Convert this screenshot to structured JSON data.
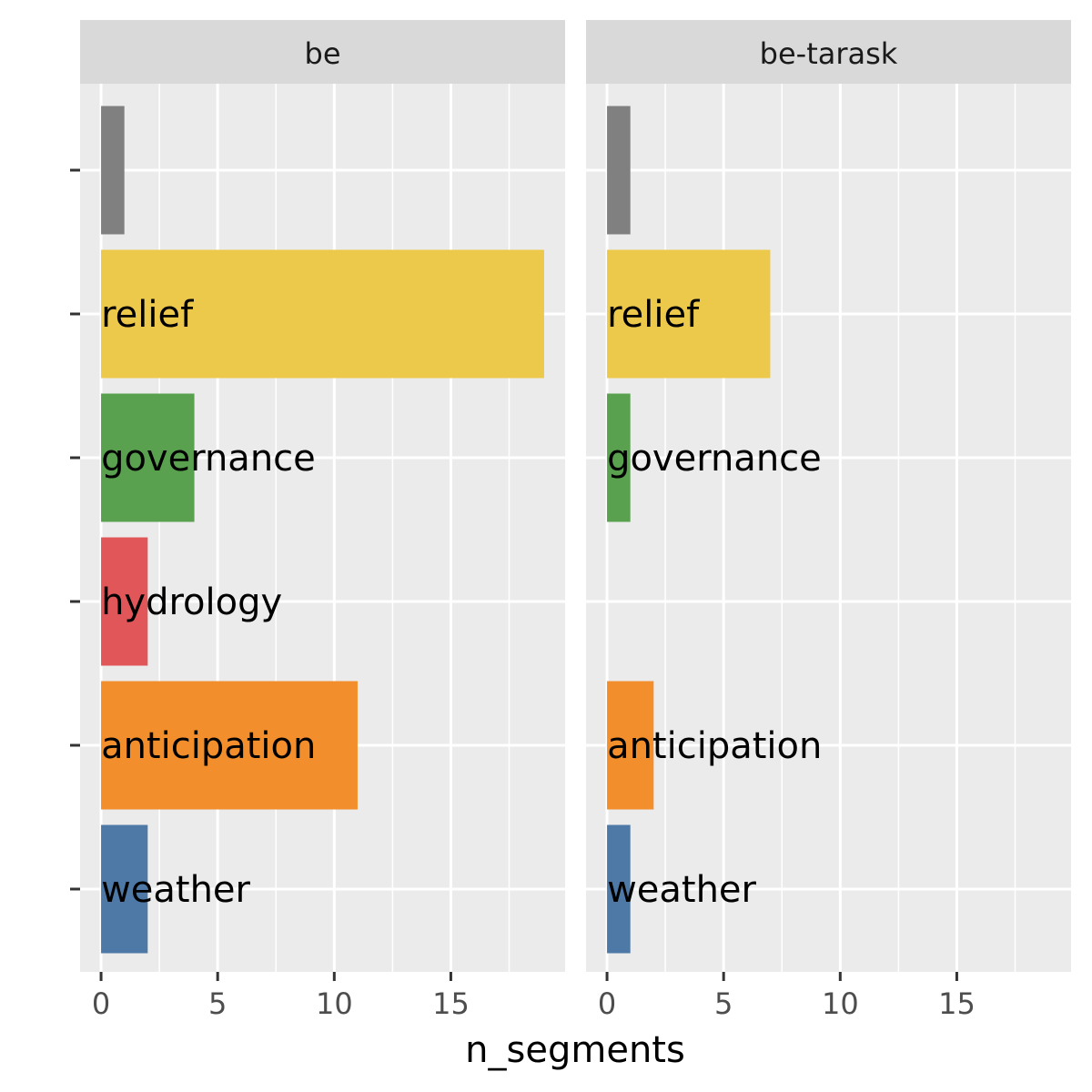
{
  "chart_data": {
    "type": "bar",
    "orientation": "horizontal",
    "xlabel": "n_segments",
    "ylabel": "",
    "xlim": [
      -0.9,
      19.9
    ],
    "x_ticks": [
      0,
      5,
      10,
      15
    ],
    "x_tick_labels": [
      "0",
      "5",
      "10",
      "15"
    ],
    "grid": true,
    "legend": "none",
    "categories": [
      "",
      "relief",
      "governance",
      "hydrology",
      "anticipation",
      "weather"
    ],
    "colors": {
      "": "#808080",
      "relief": "#ecc94b",
      "governance": "#59a14f",
      "hydrology": "#e15759",
      "anticipation": "#f28e2b",
      "weather": "#4e79a7"
    },
    "panels": [
      {
        "title": "be",
        "values": [
          1,
          19,
          4,
          2,
          11,
          2
        ]
      },
      {
        "title": "be-tarask",
        "values": [
          1,
          7,
          1,
          null,
          2,
          1
        ]
      }
    ]
  }
}
